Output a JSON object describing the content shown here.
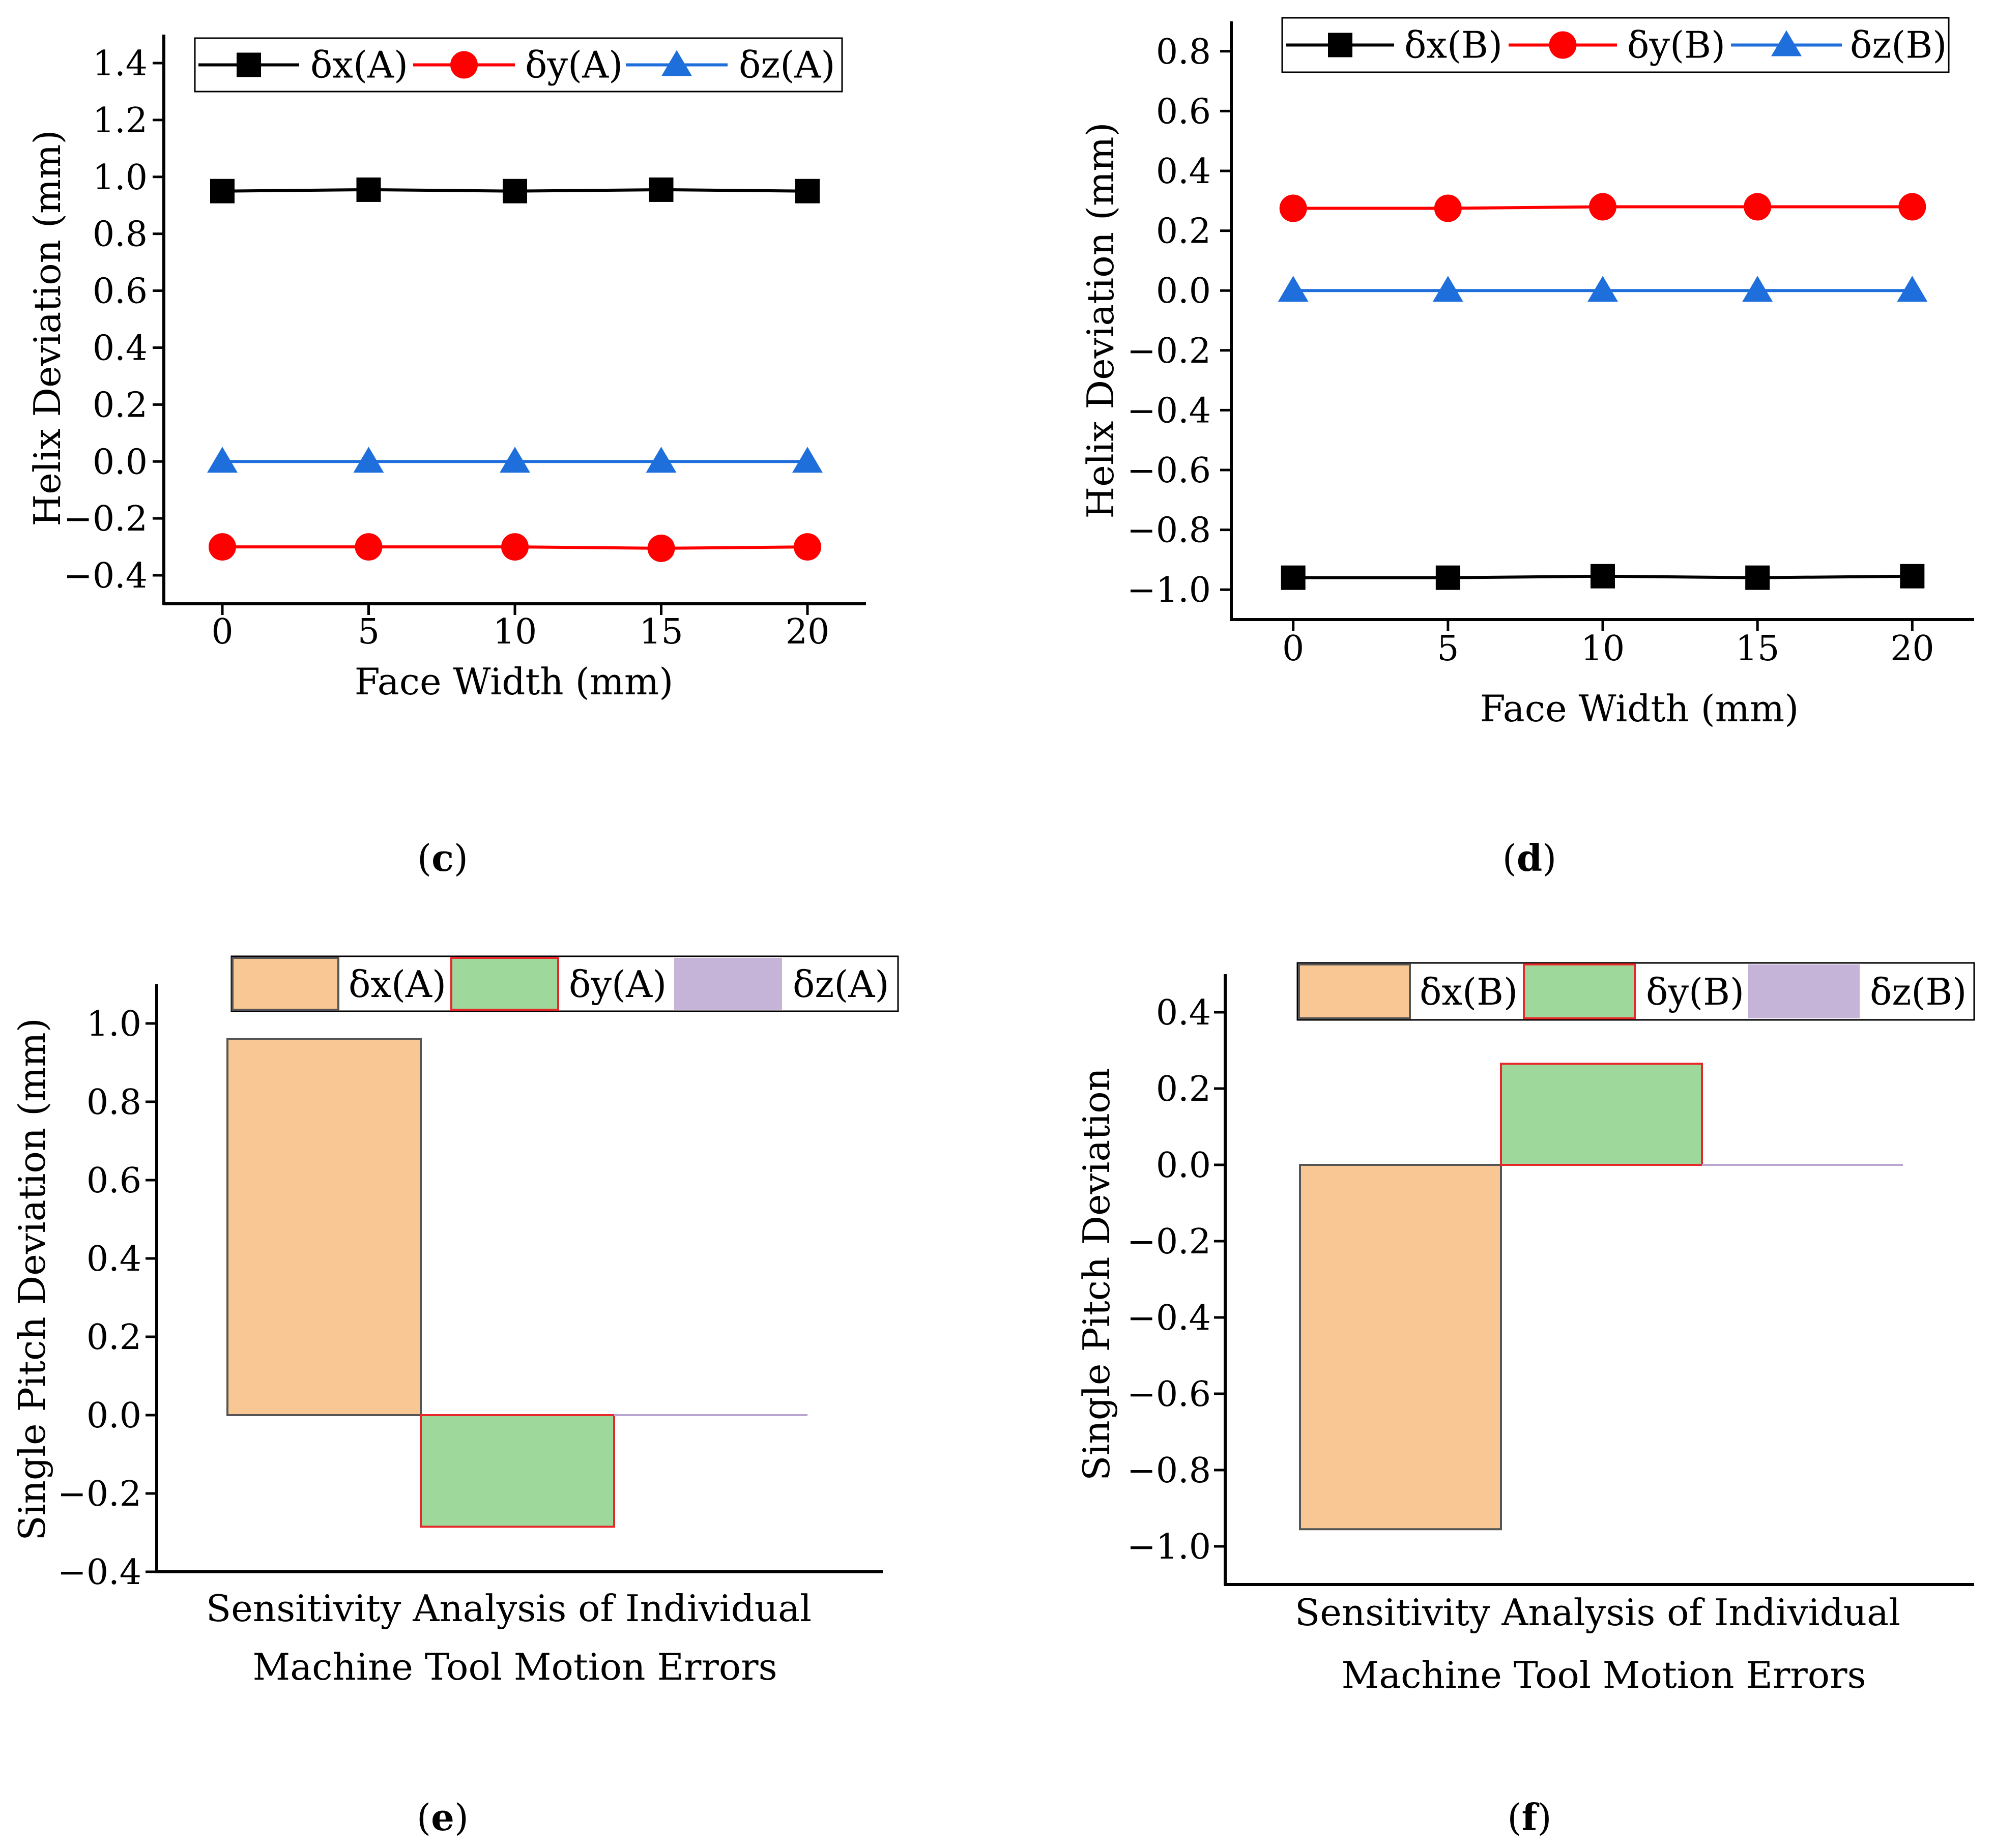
{
  "chart_data": [
    {
      "id": "c",
      "panel_label": "c",
      "type": "line",
      "xlabel": "Face Width (mm)",
      "ylabel": "Helix Deviation (mm)",
      "x": [
        0,
        5,
        10,
        15,
        20
      ],
      "xticks": [
        "0",
        "5",
        "10",
        "15",
        "20"
      ],
      "xlim": [
        -2,
        22
      ],
      "ylim": [
        -0.5,
        1.5
      ],
      "yticks": [
        "1.4",
        "1.2",
        "1.0",
        "0.8",
        "0.6",
        "0.4",
        "0.2",
        "0.0",
        "−0.2",
        "−0.4"
      ],
      "ytick_values": [
        1.4,
        1.2,
        1.0,
        0.8,
        0.6,
        0.4,
        0.2,
        0.0,
        -0.2,
        -0.4
      ],
      "legend_position": "top",
      "series": [
        {
          "name": "δx(A)",
          "color": "#000000",
          "marker": "square",
          "values": [
            0.95,
            0.955,
            0.95,
            0.955,
            0.95
          ]
        },
        {
          "name": "δy(A)",
          "color": "#ff0000",
          "marker": "circle",
          "values": [
            -0.3,
            -0.3,
            -0.3,
            -0.305,
            -0.3
          ]
        },
        {
          "name": "δz(A)",
          "color": "#1e6fdc",
          "marker": "triangle",
          "values": [
            0.0,
            0.0,
            0.0,
            0.0,
            0.0
          ]
        }
      ]
    },
    {
      "id": "d",
      "panel_label": "d",
      "type": "line",
      "xlabel": "Face Width (mm)",
      "ylabel": "Helix Deviation (mm)",
      "x": [
        0,
        5,
        10,
        15,
        20
      ],
      "xticks": [
        "0",
        "5",
        "10",
        "15",
        "20"
      ],
      "xlim": [
        -2,
        22
      ],
      "ylim": [
        -1.1,
        0.9
      ],
      "yticks": [
        "0.8",
        "0.6",
        "0.4",
        "0.2",
        "0.0",
        "−0.2",
        "−0.4",
        "−0.6",
        "−0.8",
        "−1.0"
      ],
      "ytick_values": [
        0.8,
        0.6,
        0.4,
        0.2,
        0.0,
        -0.2,
        -0.4,
        -0.6,
        -0.8,
        -1.0
      ],
      "legend_position": "top",
      "series": [
        {
          "name": "δx(B)",
          "color": "#000000",
          "marker": "square",
          "values": [
            -0.96,
            -0.96,
            -0.955,
            -0.96,
            -0.955
          ]
        },
        {
          "name": "δy(B)",
          "color": "#ff0000",
          "marker": "circle",
          "values": [
            0.275,
            0.275,
            0.28,
            0.28,
            0.28
          ]
        },
        {
          "name": "δz(B)",
          "color": "#1e6fdc",
          "marker": "triangle",
          "values": [
            0.0,
            0.0,
            0.0,
            0.0,
            0.0
          ]
        }
      ]
    },
    {
      "id": "e",
      "panel_label": "e",
      "type": "bar",
      "xlabel_lines": [
        "Sensitivity Analysis of Individual",
        "Machine Tool Motion Errors"
      ],
      "ylabel": "Single Pitch Deviation (mm)",
      "ylim": [
        -0.4,
        1.1
      ],
      "yticks": [
        "1.0",
        "0.8",
        "0.6",
        "0.4",
        "0.2",
        "0.0",
        "−0.2",
        "−0.4"
      ],
      "ytick_values": [
        1.0,
        0.8,
        0.6,
        0.4,
        0.2,
        0.0,
        -0.2,
        -0.4
      ],
      "legend_position": "top",
      "series": [
        {
          "name": "δx(A)",
          "value": 0.96,
          "fill": "#f9c794",
          "stroke": "#555555"
        },
        {
          "name": "δy(A)",
          "value": -0.285,
          "fill": "#9ed89a",
          "stroke": "#e8292b"
        },
        {
          "name": "δz(A)",
          "value": 0.0,
          "fill": "#c5b3d8",
          "stroke": "#b8a6d0"
        }
      ]
    },
    {
      "id": "f",
      "panel_label": "f",
      "type": "bar",
      "xlabel_lines": [
        "Sensitivity Analysis of Individual",
        "Machine Tool Motion Errors"
      ],
      "ylabel": "Single Pitch Deviation",
      "ylim": [
        -1.1,
        0.5
      ],
      "yticks": [
        "0.4",
        "0.2",
        "0.0",
        "−0.2",
        "−0.4",
        "−0.6",
        "−0.8",
        "−1.0"
      ],
      "ytick_values": [
        0.4,
        0.2,
        0.0,
        -0.2,
        -0.4,
        -0.6,
        -0.8,
        -1.0
      ],
      "legend_position": "top",
      "series": [
        {
          "name": "δx(B)",
          "value": -0.955,
          "fill": "#f9c794",
          "stroke": "#555555"
        },
        {
          "name": "δy(B)",
          "value": 0.265,
          "fill": "#9ed89a",
          "stroke": "#e8292b"
        },
        {
          "name": "δz(B)",
          "value": 0.0,
          "fill": "#c5b3d8",
          "stroke": "#b8a6d0"
        }
      ]
    }
  ]
}
